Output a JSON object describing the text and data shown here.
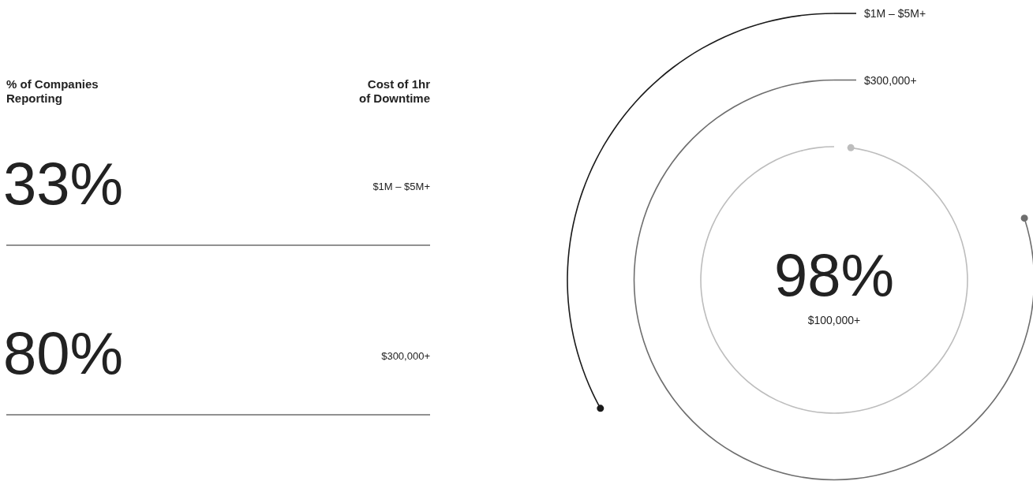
{
  "chart_data": {
    "type": "other",
    "categories": [
      "$1M – $5M+",
      "$300,000+",
      "$100,000+"
    ],
    "values": [
      33,
      80,
      98
    ],
    "value_labels": [
      "33%",
      "80%",
      "98%"
    ],
    "colors": [
      "#1a1a1a",
      "#6e6e6e",
      "#bdbdbd"
    ],
    "annotations": [
      "% of Companies Reporting",
      "Cost of 1hr of Downtime"
    ]
  }
}
